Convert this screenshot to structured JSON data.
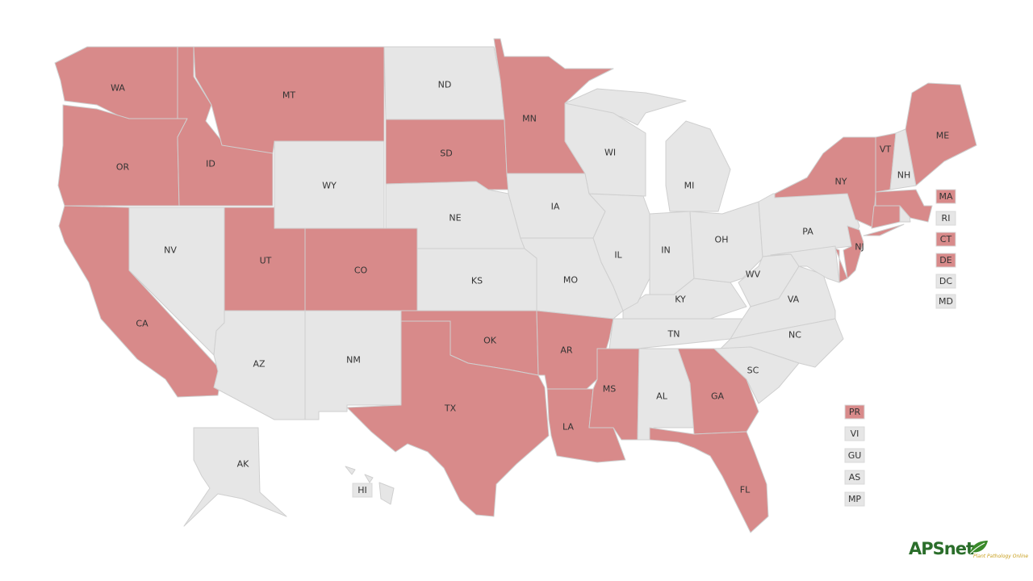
{
  "colors": {
    "highlighted": "#d88a8a",
    "default": "#e6e6e6",
    "border": "#cfcfcf"
  },
  "states": [
    {
      "code": "WA",
      "highlighted": true
    },
    {
      "code": "OR",
      "highlighted": true
    },
    {
      "code": "CA",
      "highlighted": true
    },
    {
      "code": "ID",
      "highlighted": true
    },
    {
      "code": "MT",
      "highlighted": true
    },
    {
      "code": "WY",
      "highlighted": false
    },
    {
      "code": "NV",
      "highlighted": false
    },
    {
      "code": "UT",
      "highlighted": true
    },
    {
      "code": "CO",
      "highlighted": true
    },
    {
      "code": "AZ",
      "highlighted": false
    },
    {
      "code": "NM",
      "highlighted": false
    },
    {
      "code": "ND",
      "highlighted": false
    },
    {
      "code": "SD",
      "highlighted": true
    },
    {
      "code": "NE",
      "highlighted": false
    },
    {
      "code": "KS",
      "highlighted": false
    },
    {
      "code": "OK",
      "highlighted": true
    },
    {
      "code": "TX",
      "highlighted": true
    },
    {
      "code": "MN",
      "highlighted": true
    },
    {
      "code": "IA",
      "highlighted": false
    },
    {
      "code": "MO",
      "highlighted": false
    },
    {
      "code": "AR",
      "highlighted": true
    },
    {
      "code": "LA",
      "highlighted": true
    },
    {
      "code": "MS",
      "highlighted": true
    },
    {
      "code": "AL",
      "highlighted": false
    },
    {
      "code": "GA",
      "highlighted": true
    },
    {
      "code": "FL",
      "highlighted": true
    },
    {
      "code": "TN",
      "highlighted": false
    },
    {
      "code": "KY",
      "highlighted": false
    },
    {
      "code": "IL",
      "highlighted": false
    },
    {
      "code": "IN",
      "highlighted": false
    },
    {
      "code": "OH",
      "highlighted": false
    },
    {
      "code": "MI",
      "highlighted": false
    },
    {
      "code": "WI",
      "highlighted": false
    },
    {
      "code": "PA",
      "highlighted": false
    },
    {
      "code": "NY",
      "highlighted": true
    },
    {
      "code": "WV",
      "highlighted": false
    },
    {
      "code": "VA",
      "highlighted": false
    },
    {
      "code": "NC",
      "highlighted": false
    },
    {
      "code": "SC",
      "highlighted": false
    },
    {
      "code": "MD",
      "highlighted": false
    },
    {
      "code": "DE",
      "highlighted": true
    },
    {
      "code": "NJ",
      "highlighted": true
    },
    {
      "code": "CT",
      "highlighted": true
    },
    {
      "code": "RI",
      "highlighted": false
    },
    {
      "code": "MA",
      "highlighted": true
    },
    {
      "code": "VT",
      "highlighted": true
    },
    {
      "code": "NH",
      "highlighted": false
    },
    {
      "code": "ME",
      "highlighted": true
    },
    {
      "code": "AK",
      "highlighted": false
    },
    {
      "code": "HI",
      "highlighted": false
    },
    {
      "code": "DC",
      "highlighted": false
    },
    {
      "code": "PR",
      "highlighted": true
    },
    {
      "code": "VI",
      "highlighted": false
    },
    {
      "code": "GU",
      "highlighted": false
    },
    {
      "code": "AS",
      "highlighted": false
    },
    {
      "code": "MP",
      "highlighted": false
    }
  ],
  "logo": {
    "name": "APSnet",
    "tagline": "Plant Pathology Online"
  }
}
